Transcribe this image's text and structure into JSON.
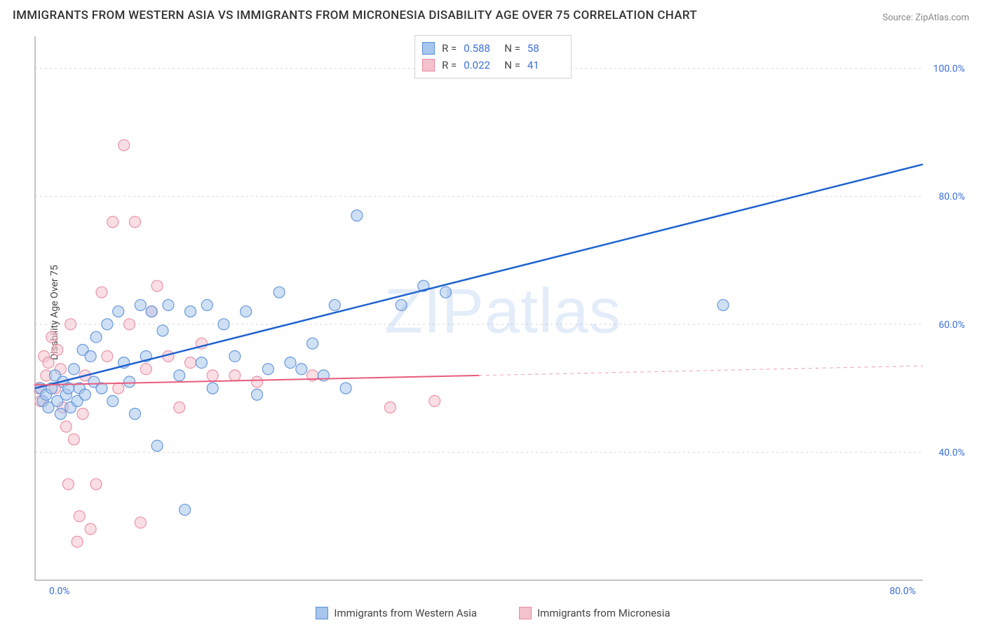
{
  "title": "IMMIGRANTS FROM WESTERN ASIA VS IMMIGRANTS FROM MICRONESIA DISABILITY AGE OVER 75 CORRELATION CHART",
  "source": "Source: ZipAtlas.com",
  "ylabel": "Disability Age Over 75",
  "watermark": "ZIPatlas",
  "chart": {
    "type": "scatter",
    "background_color": "#ffffff",
    "grid_color": "#d8d8d8",
    "axis_color": "#888888",
    "xlim": [
      0,
      80
    ],
    "ylim": [
      20,
      105
    ],
    "x_ticks": [
      {
        "v": 0,
        "label": "0.0%"
      },
      {
        "v": 80,
        "label": "80.0%"
      }
    ],
    "y_ticks": [
      {
        "v": 40,
        "label": "40.0%"
      },
      {
        "v": 60,
        "label": "60.0%"
      },
      {
        "v": 80,
        "label": "80.0%"
      },
      {
        "v": 100,
        "label": "100.0%"
      }
    ],
    "marker_radius": 8,
    "marker_opacity": 0.55,
    "marker_stroke_opacity": 0.9,
    "series": [
      {
        "name": "Immigrants from Western Asia",
        "color_fill": "#a7c6ed",
        "color_stroke": "#5a8fd6",
        "line_color": "#1e62d0",
        "line_width": 2.5,
        "r": 0.588,
        "n": 58,
        "trend": {
          "x0": 0,
          "y0": 50,
          "x1": 80,
          "y1": 85,
          "dashed_from_x": null
        },
        "points": [
          [
            0.5,
            50
          ],
          [
            0.7,
            48
          ],
          [
            1,
            49
          ],
          [
            1.2,
            47
          ],
          [
            1.5,
            50
          ],
          [
            1.8,
            52
          ],
          [
            2,
            48
          ],
          [
            2.3,
            46
          ],
          [
            2.5,
            51
          ],
          [
            2.8,
            49
          ],
          [
            3,
            50
          ],
          [
            3.2,
            47
          ],
          [
            3.5,
            53
          ],
          [
            3.8,
            48
          ],
          [
            4,
            50
          ],
          [
            4.3,
            56
          ],
          [
            4.5,
            49
          ],
          [
            5,
            55
          ],
          [
            5.3,
            51
          ],
          [
            5.5,
            58
          ],
          [
            6,
            50
          ],
          [
            6.5,
            60
          ],
          [
            7,
            48
          ],
          [
            7.5,
            62
          ],
          [
            8,
            54
          ],
          [
            8.5,
            51
          ],
          [
            9,
            46
          ],
          [
            9.5,
            63
          ],
          [
            10,
            55
          ],
          [
            10.5,
            62
          ],
          [
            11,
            41
          ],
          [
            11.5,
            59
          ],
          [
            12,
            63
          ],
          [
            13,
            52
          ],
          [
            13.5,
            31
          ],
          [
            14,
            62
          ],
          [
            15,
            54
          ],
          [
            15.5,
            63
          ],
          [
            16,
            50
          ],
          [
            17,
            60
          ],
          [
            18,
            55
          ],
          [
            19,
            62
          ],
          [
            20,
            49
          ],
          [
            21,
            53
          ],
          [
            22,
            65
          ],
          [
            23,
            54
          ],
          [
            24,
            53
          ],
          [
            25,
            57
          ],
          [
            26,
            52
          ],
          [
            27,
            63
          ],
          [
            28,
            50
          ],
          [
            29,
            77
          ],
          [
            33,
            63
          ],
          [
            35,
            66
          ],
          [
            37,
            65
          ],
          [
            62,
            63
          ]
        ]
      },
      {
        "name": "Immigrants from Micronesia",
        "color_fill": "#f4c2cd",
        "color_stroke": "#e88aa0",
        "line_color": "#e85b7d",
        "line_width": 2,
        "r": 0.022,
        "n": 41,
        "trend": {
          "x0": 0,
          "y0": 50.5,
          "x1": 80,
          "y1": 53.5,
          "dashed_from_x": 40
        },
        "points": [
          [
            0.3,
            50
          ],
          [
            0.5,
            48
          ],
          [
            0.8,
            55
          ],
          [
            1,
            52
          ],
          [
            1.2,
            54
          ],
          [
            1.5,
            58
          ],
          [
            1.8,
            50
          ],
          [
            2,
            56
          ],
          [
            2.3,
            53
          ],
          [
            2.5,
            47
          ],
          [
            2.8,
            44
          ],
          [
            3,
            35
          ],
          [
            3.2,
            60
          ],
          [
            3.5,
            42
          ],
          [
            3.8,
            26
          ],
          [
            4,
            30
          ],
          [
            4.3,
            46
          ],
          [
            4.5,
            52
          ],
          [
            5,
            28
          ],
          [
            5.5,
            35
          ],
          [
            6,
            65
          ],
          [
            6.5,
            55
          ],
          [
            7,
            76
          ],
          [
            7.5,
            50
          ],
          [
            8,
            88
          ],
          [
            8.5,
            60
          ],
          [
            9,
            76
          ],
          [
            9.5,
            29
          ],
          [
            10,
            53
          ],
          [
            10.5,
            62
          ],
          [
            11,
            66
          ],
          [
            12,
            55
          ],
          [
            13,
            47
          ],
          [
            14,
            54
          ],
          [
            15,
            57
          ],
          [
            16,
            52
          ],
          [
            18,
            52
          ],
          [
            20,
            51
          ],
          [
            25,
            52
          ],
          [
            32,
            47
          ],
          [
            36,
            48
          ]
        ]
      }
    ]
  },
  "stats_box": {
    "r_label": "R =",
    "n_label": "N ="
  },
  "legend": {
    "series1": "Immigrants from Western Asia",
    "series2": "Immigrants from Micronesia"
  }
}
